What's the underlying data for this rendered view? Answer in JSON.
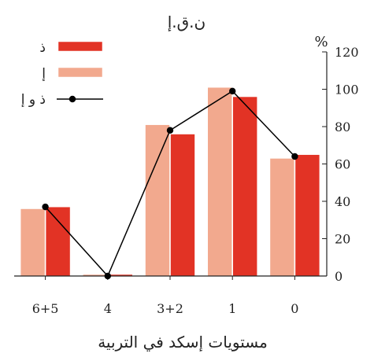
{
  "chart_data": {
    "type": "bar",
    "title": "ن.ق.إ",
    "xlabel": "مستويات إسكد في التربية",
    "ylabel": "%",
    "categories": [
      "6+5",
      "4",
      "3+2",
      "1",
      "0"
    ],
    "series": [
      {
        "name": "إ",
        "kind": "bar",
        "color": "#f2a98e",
        "values": [
          36,
          0,
          81,
          101,
          63
        ]
      },
      {
        "name": "ذ",
        "kind": "bar",
        "color": "#e23325",
        "values": [
          37,
          0,
          76,
          96,
          65
        ]
      },
      {
        "name": "ذ و إ",
        "kind": "line",
        "color": "#000000",
        "values": [
          37,
          0,
          78,
          99,
          64
        ]
      }
    ],
    "y_ticks": [
      "0",
      "20",
      "40",
      "60",
      "80",
      "100",
      "120"
    ],
    "ylim": [
      0,
      120
    ],
    "y_axis_side": "right",
    "legend_position": "top-left",
    "grid": false
  }
}
